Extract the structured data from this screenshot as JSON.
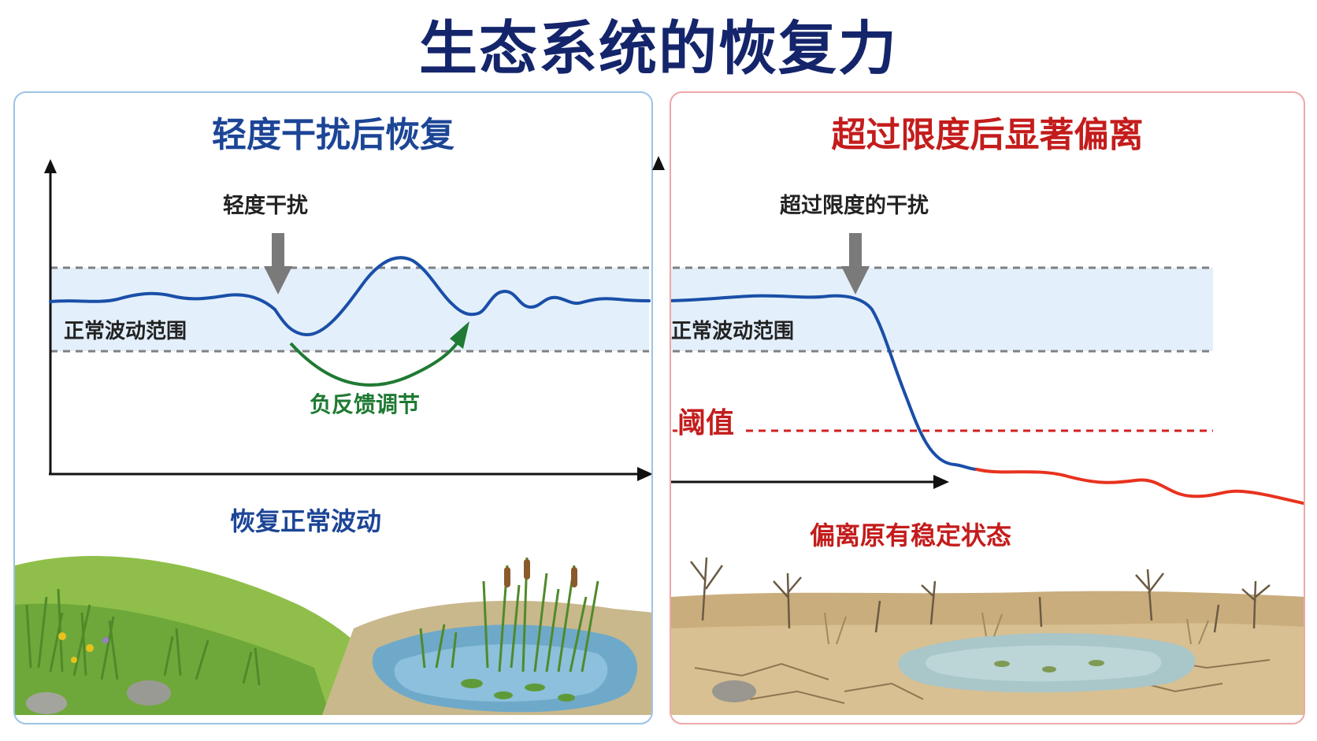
{
  "title": "生态系统的恢复力",
  "left_panel": {
    "title": "轻度干扰后恢复",
    "disturbance_label": "轻度干扰",
    "range_label": "正常波动范围",
    "feedback_label": "负反馈调节",
    "result_label": "恢复正常波动"
  },
  "right_panel": {
    "title": "超过限度后显著偏离",
    "disturbance_label": "超过限度的干扰",
    "range_label": "正常波动范围",
    "threshold_label": "阈值",
    "result_label": "偏离原有稳定状态"
  },
  "colors": {
    "title": "#14256b",
    "left_accent": "#1c4596",
    "right_accent": "#c41c1c",
    "curve": "#1a4fa8",
    "deviation_curve": "#e8321e",
    "feedback": "#1f7a33",
    "band_fill": "#e3effb",
    "disturbance_arrow": "#7a7a7a"
  },
  "icons": {
    "disturbance": "down-arrow-icon",
    "feedback": "curved-arrow-icon"
  }
}
